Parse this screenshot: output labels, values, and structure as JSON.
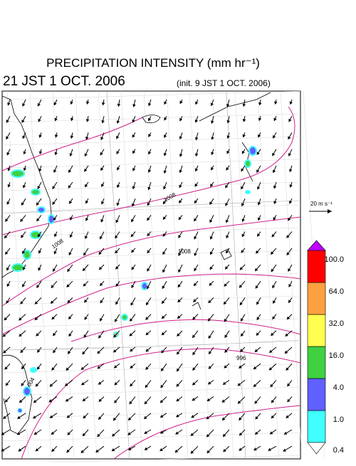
{
  "header": {
    "title": "PRECIPITATION INTENSITY (mm hr⁻¹)",
    "valid_time": "21 JST 1 OCT. 2006",
    "init_time": "(init. 9 JST 1 OCT. 2006)"
  },
  "wind_scale": {
    "label": "20 m s⁻¹"
  },
  "isobar_labels": [
    "1008",
    "1008",
    "1008",
    "996",
    "1004"
  ],
  "colorbar": {
    "ticks": [
      {
        "value": 0.4,
        "label": "0.4"
      },
      {
        "value": 1,
        "label": "1.0"
      },
      {
        "value": 4,
        "label": "4.0"
      },
      {
        "value": 16,
        "label": "16.0"
      },
      {
        "value": 32,
        "label": "32.0"
      },
      {
        "value": 64,
        "label": "64.0"
      },
      {
        "value": 100,
        "label": "100.0"
      }
    ],
    "colors": [
      "#40ffff",
      "#6060ff",
      "#40d040",
      "#ffff50",
      "#ffa040",
      "#ff0000"
    ],
    "over_color": "#c000ff",
    "under_color": "#ffffff"
  }
}
